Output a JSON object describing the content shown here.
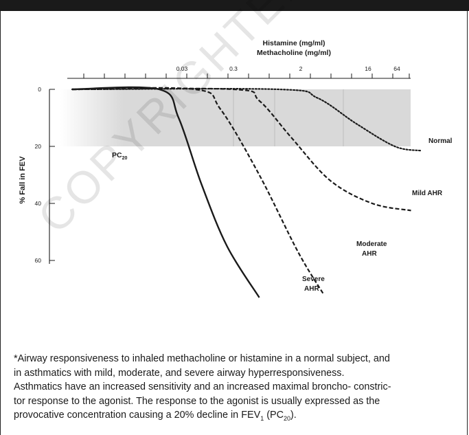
{
  "chart_data": {
    "type": "line",
    "xlabel_line1": "Histamine (mg/ml)",
    "xlabel_line2": "Methacholine (mg/ml)",
    "ylabel": "% Fall in FEV",
    "x_tick_labels": [
      "0.03",
      "0.3",
      "2",
      "16",
      "64"
    ],
    "y_tick_labels": [
      "0",
      "20",
      "40",
      "60"
    ],
    "ylim": [
      0,
      60
    ],
    "shaded_band_label": "PC20",
    "shaded_band_label_main": "PC",
    "shaded_band_label_sub": "20",
    "series": [
      {
        "name": "Normal",
        "style": "dotted",
        "points": [
          [
            0,
            0
          ],
          [
            0.64,
            0
          ],
          [
            0.76,
            3
          ],
          [
            0.88,
            12
          ],
          [
            1.0,
            20
          ],
          [
            1.08,
            21.5
          ]
        ]
      },
      {
        "name": "Mild AHR",
        "style": "dashed",
        "points": [
          [
            0,
            0
          ],
          [
            0.5,
            0
          ],
          [
            0.58,
            4
          ],
          [
            0.68,
            17
          ],
          [
            0.8,
            32
          ],
          [
            0.93,
            40
          ],
          [
            1.05,
            42.5
          ]
        ]
      },
      {
        "name": "Moderate AHR",
        "style": "dashed",
        "points": [
          [
            0,
            0
          ],
          [
            0.38,
            0
          ],
          [
            0.46,
            7
          ],
          [
            0.58,
            30
          ],
          [
            0.7,
            57
          ],
          [
            0.78,
            72
          ]
        ]
      },
      {
        "name": "Severe AHR",
        "style": "solid",
        "points": [
          [
            0,
            0
          ],
          [
            0.27,
            0
          ],
          [
            0.33,
            10
          ],
          [
            0.4,
            33
          ],
          [
            0.48,
            55
          ],
          [
            0.58,
            73
          ]
        ]
      }
    ],
    "series_labels": {
      "normal": "Normal",
      "mild": "Mild AHR",
      "moderate_line1": "Moderate",
      "moderate_line2": "AHR",
      "severe_line1": "Severe",
      "severe_line2": "AHR"
    }
  },
  "caption": {
    "line1": "*Airway responsiveness to inhaled methacholine or histamine in a normal subject, and",
    "line2": "in asthmatics with mild, moderate, and severe airway hyperresponsiveness.",
    "line3": "Asthmatics have an increased sensitivity and an increased maximal broncho- constric-",
    "line4": "tor response to the agonist.  The response to the agonist is usually expressed as the",
    "line5_before": "provocative concentration causing a 20% decline in FEV",
    "line5_sub1": "1",
    "line5_mid": " (PC",
    "line5_sub2": "20",
    "line5_after": ")."
  },
  "watermark": "COPYRIGHTED MATERIAL",
  "colors": {
    "ink": "#1a1a1a",
    "band": "#d6d6d6",
    "watermark": "#000000"
  }
}
